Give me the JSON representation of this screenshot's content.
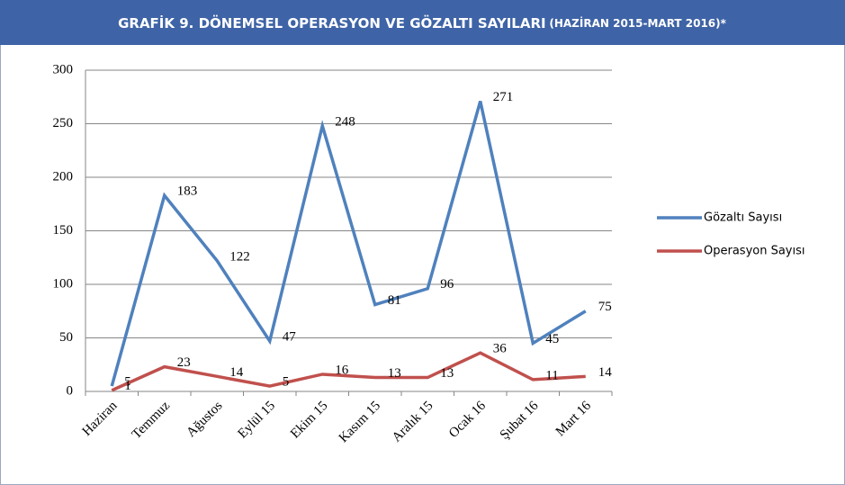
{
  "chart_data": {
    "type": "line",
    "title": "GRAFİK 9. DÖNEMSEL OPERASYON VE GÖZALTI SAYILARI",
    "subtitle": "(HAZİRAN 2015-MART 2016)*",
    "categories": [
      "Haziran",
      "Temmuz",
      "Ağustos",
      "Eylül 15",
      "Ekim 15",
      "Kasım 15",
      "Aralık 15",
      "Ocak 16",
      "Şubat 16",
      "Mart 16"
    ],
    "series": [
      {
        "name": "Gözaltı Sayısı",
        "color": "#4f81bd",
        "values": [
          5,
          183,
          122,
          47,
          248,
          81,
          96,
          271,
          45,
          75
        ]
      },
      {
        "name": "Operasyon Sayısı",
        "color": "#c0504d",
        "values": [
          1,
          23,
          14,
          5,
          16,
          13,
          13,
          36,
          11,
          14
        ]
      }
    ],
    "ylim": [
      0,
      300
    ],
    "yticks": [
      0,
      50,
      100,
      150,
      200,
      250,
      300
    ],
    "grid": true,
    "legend": "right"
  }
}
